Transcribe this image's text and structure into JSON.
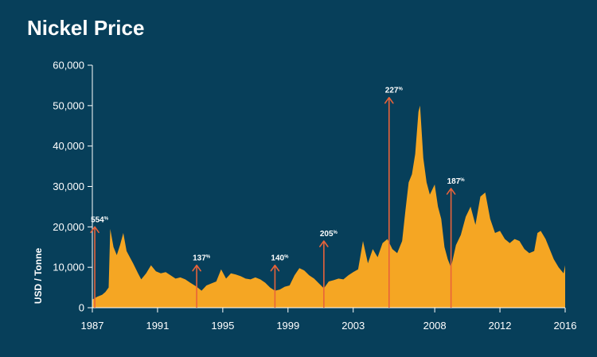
{
  "chart_data": {
    "type": "area",
    "title": "Nickel Price",
    "ylabel": "USD / Tonne",
    "xlabel": "",
    "xlim": [
      1987,
      2016
    ],
    "ylim": [
      0,
      60000
    ],
    "y_ticks": [
      0,
      10000,
      20000,
      30000,
      40000,
      50000,
      60000
    ],
    "y_tick_labels": [
      "0",
      "10,000",
      "20,000",
      "30,000",
      "40,000",
      "50,000",
      "60,000"
    ],
    "x_ticks": [
      1987,
      1991,
      1995,
      1999,
      2003,
      2008,
      2012,
      2016
    ],
    "x_tick_labels": [
      "1987",
      "1991",
      "1995",
      "1999",
      "2003",
      "2008",
      "2012",
      "2016"
    ],
    "grid": false,
    "legend": "none",
    "colors": {
      "background": "#073f5a",
      "fill": "#f5a623",
      "annotation": "#e8633a",
      "text": "#ffffff"
    },
    "series": [
      {
        "x": [
          1987.0,
          1987.3,
          1987.6,
          1987.8,
          1988.0,
          1988.1,
          1988.3,
          1988.5,
          1988.7,
          1988.9,
          1989.1,
          1989.3,
          1989.5,
          1989.8,
          1990.0,
          1990.3,
          1990.6,
          1990.9,
          1991.2,
          1991.5,
          1991.8,
          1992.1,
          1992.4,
          1992.7,
          1993.0,
          1993.4,
          1993.7,
          1994.0,
          1994.3,
          1994.6,
          1994.9,
          1995.2,
          1995.5,
          1995.8,
          1996.1,
          1996.4,
          1996.7,
          1997.0,
          1997.3,
          1997.6,
          1997.9,
          1998.2,
          1998.5,
          1998.8,
          1999.1,
          1999.4,
          1999.7,
          2000.0,
          2000.3,
          2000.6,
          2000.9,
          2001.2,
          2001.5,
          2001.8,
          2002.1,
          2002.4,
          2002.7,
          2003.0,
          2003.3,
          2003.6,
          2003.9,
          2004.2,
          2004.5,
          2004.8,
          2005.1,
          2005.4,
          2005.7,
          2006.0,
          2006.2,
          2006.4,
          2006.6,
          2006.8,
          2007.0,
          2007.1,
          2007.3,
          2007.5,
          2007.7,
          2008.0,
          2008.2,
          2008.4,
          2008.6,
          2008.8,
          2009.0,
          2009.3,
          2009.6,
          2009.9,
          2010.2,
          2010.5,
          2010.8,
          2011.1,
          2011.4,
          2011.7,
          2012.0,
          2012.3,
          2012.6,
          2012.9,
          2013.2,
          2013.5,
          2013.8,
          2014.1,
          2014.3,
          2014.5,
          2014.8,
          2015.0,
          2015.3,
          2015.6,
          2015.9,
          2016.0
        ],
        "values": [
          2000,
          2700,
          3200,
          3900,
          5000,
          19500,
          15000,
          13000,
          15500,
          18500,
          14000,
          12500,
          11000,
          8500,
          7000,
          8500,
          10500,
          9000,
          8500,
          8800,
          8000,
          7200,
          7500,
          7000,
          6200,
          5200,
          4200,
          5500,
          6000,
          6500,
          9500,
          7200,
          8500,
          8200,
          7800,
          7200,
          7000,
          7500,
          7000,
          6200,
          5000,
          4200,
          4500,
          5200,
          5500,
          8000,
          9800,
          9200,
          8000,
          7200,
          6000,
          4800,
          6500,
          6800,
          7200,
          7000,
          8000,
          8800,
          9500,
          16500,
          11000,
          14500,
          12500,
          16000,
          17000,
          14500,
          13500,
          16500,
          24000,
          31000,
          33000,
          38000,
          48500,
          50000,
          37000,
          31000,
          28000,
          30500,
          25000,
          22000,
          15000,
          12000,
          10000,
          15500,
          18000,
          22500,
          25000,
          20500,
          27500,
          28500,
          22000,
          18500,
          19000,
          17000,
          16000,
          17000,
          16500,
          14500,
          13500,
          14000,
          18500,
          19000,
          17000,
          15000,
          12000,
          10000,
          8500,
          10500
        ]
      }
    ],
    "annotations": [
      {
        "x": 1987.15,
        "y_top": 20000,
        "label": "554",
        "suffix": "%"
      },
      {
        "x": 1993.4,
        "y_top": 10500,
        "label": "137",
        "suffix": "%"
      },
      {
        "x": 1998.2,
        "y_top": 10500,
        "label": "140",
        "suffix": "%"
      },
      {
        "x": 2001.2,
        "y_top": 16500,
        "label": "205",
        "suffix": "%"
      },
      {
        "x": 2005.2,
        "y_top": 52000,
        "label": "227",
        "suffix": "%"
      },
      {
        "x": 2009.0,
        "y_top": 29500,
        "label": "187",
        "suffix": "%"
      }
    ]
  }
}
